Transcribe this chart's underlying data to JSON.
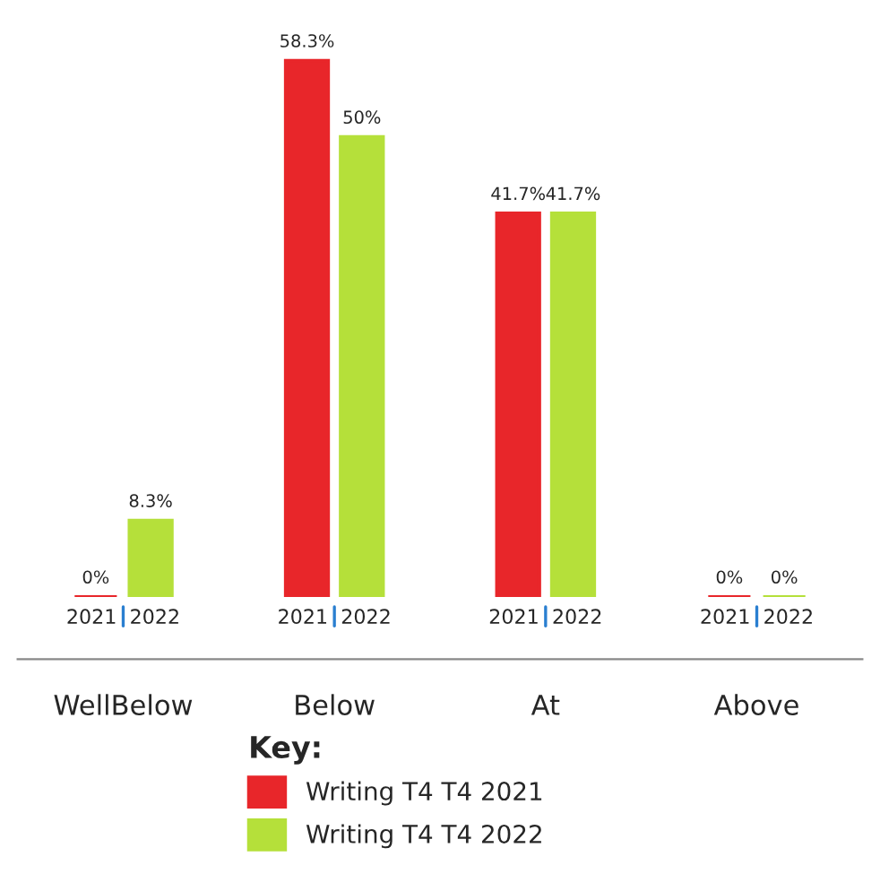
{
  "chart_data": {
    "type": "bar",
    "categories": [
      "WellBelow",
      "Below",
      "At",
      "Above"
    ],
    "legend_title": "Key:",
    "legend": "bottom",
    "grid": false,
    "series": [
      {
        "name": "Writing T4 T4 2021",
        "color": "#e8262a",
        "values": [
          0,
          58.3,
          41.7,
          0
        ],
        "value_labels": [
          "0%",
          "58.3%",
          "41.7%",
          "0%"
        ]
      },
      {
        "name": "Writing T4 T4 2022",
        "color": "#b5e03a",
        "values": [
          8.3,
          50,
          41.7,
          0
        ],
        "value_labels": [
          "8.3%",
          "50%",
          "41.7%",
          "0%"
        ]
      }
    ],
    "annotations": [
      "2021",
      "2022",
      "2021",
      "2022",
      "2021",
      "2022",
      "2021",
      "2022"
    ]
  }
}
